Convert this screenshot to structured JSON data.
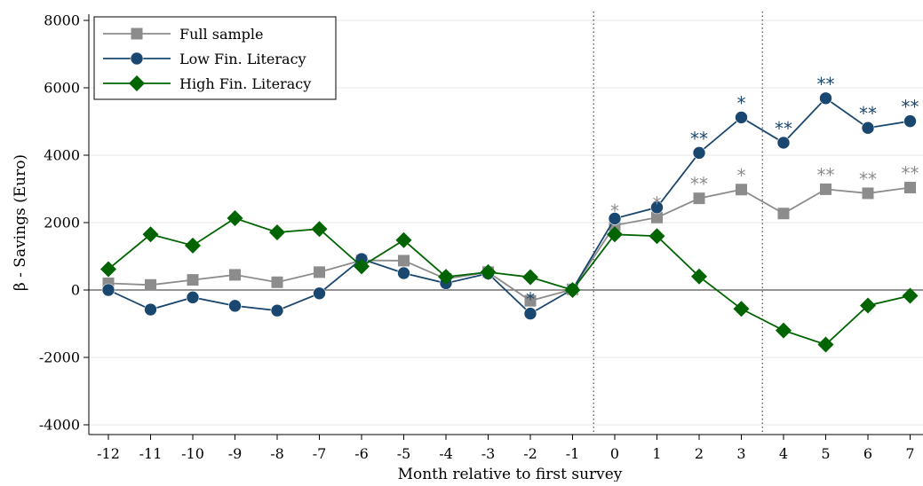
{
  "chart_data": {
    "type": "line",
    "title": "",
    "xlabel": "Month relative to first survey",
    "ylabel": "β - Savings (Euro)",
    "x": [
      -12,
      -11,
      -10,
      -9,
      -8,
      -7,
      -6,
      -5,
      -4,
      -3,
      -2,
      -1,
      0,
      1,
      2,
      3,
      4,
      5,
      6,
      7
    ],
    "x_tick_labels": [
      "-12",
      "-11",
      "-10",
      "-9",
      "-8",
      "-7",
      "-6",
      "-5",
      "-4",
      "-3",
      "-2",
      "-1",
      "0",
      "1",
      "2",
      "3",
      "4",
      "5",
      "6",
      "7"
    ],
    "ylim": [
      -4000,
      8000
    ],
    "y_ticks": [
      -4000,
      -2000,
      0,
      2000,
      4000,
      6000,
      8000
    ],
    "y_tick_labels": [
      "-4000",
      "-2000",
      "0",
      "2000",
      "4000",
      "6000",
      "8000"
    ],
    "grid": "horizontal",
    "legend_position": "top-left",
    "reference_lines": {
      "horizontal": [
        0
      ],
      "vertical_dotted": [
        -0.5,
        3.5
      ]
    },
    "series": [
      {
        "name": "Full sample",
        "marker": "square",
        "color": "#8c8c8c",
        "values": [
          200,
          150,
          300,
          450,
          230,
          530,
          880,
          870,
          330,
          530,
          -320,
          20,
          1920,
          2150,
          2720,
          2980,
          2270,
          2990,
          2870,
          3040
        ],
        "significance": [
          "",
          "",
          "",
          "",
          "",
          "",
          "",
          "",
          "",
          "",
          "",
          "",
          "*",
          "*",
          "**",
          "*",
          "",
          "**",
          "**",
          "**"
        ]
      },
      {
        "name": "Low Fin. Literacy",
        "marker": "circle",
        "color": "#1a476f",
        "values": [
          0,
          -580,
          -220,
          -470,
          -610,
          -100,
          920,
          500,
          200,
          490,
          -700,
          20,
          2120,
          2450,
          4070,
          5120,
          4370,
          5690,
          4810,
          5010
        ],
        "significance": [
          "",
          "",
          "",
          "",
          "",
          "",
          "",
          "",
          "",
          "",
          "*",
          "",
          "",
          "",
          "**",
          "*",
          "**",
          "**",
          "**",
          "**"
        ]
      },
      {
        "name": "High Fin. Literacy",
        "marker": "diamond",
        "color": "#006400",
        "values": [
          620,
          1650,
          1320,
          2130,
          1710,
          1810,
          700,
          1480,
          390,
          530,
          380,
          0,
          1650,
          1600,
          400,
          -560,
          -1200,
          -1620,
          -460,
          -170
        ],
        "significance": [
          "",
          "",
          "",
          "",
          "",
          "",
          "",
          "",
          "",
          "",
          "",
          "",
          "",
          "",
          "",
          "",
          "",
          "",
          "",
          ""
        ]
      }
    ]
  }
}
